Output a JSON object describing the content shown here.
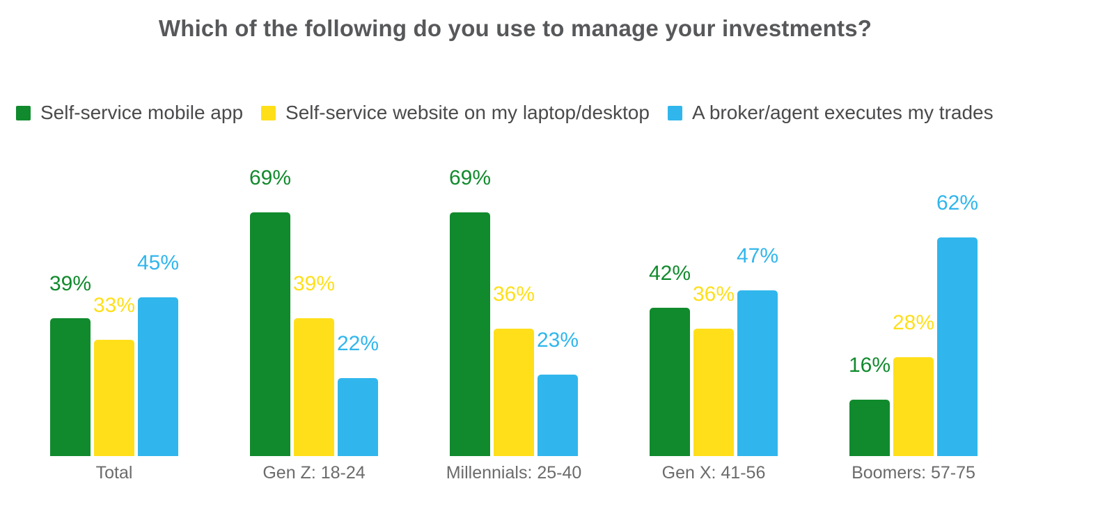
{
  "title": "Which of the following do you use to manage your investments?",
  "colors": {
    "background": "#ffffff",
    "title_text": "#57585a",
    "legend_text": "#4a4a4c",
    "category_text": "#6b6b6b",
    "series_green": "#118a2d",
    "series_yellow": "#ffdf1a",
    "series_blue": "#30b6ec"
  },
  "chart_data": {
    "type": "bar",
    "title": "Which of the following do you use to manage your investments?",
    "xlabel": "",
    "ylabel": "",
    "ylim": [
      0,
      75
    ],
    "grid": false,
    "axes_visible": false,
    "legend_position": "top-left",
    "value_suffix": "%",
    "categories": [
      "Total",
      "Gen Z: 18-24",
      "Millennials: 25-40",
      "Gen X: 41-56",
      "Boomers: 57-75"
    ],
    "series": [
      {
        "name": "Self-service mobile app",
        "color": "#118a2d",
        "values": [
          39,
          69,
          69,
          42,
          16
        ]
      },
      {
        "name": "Self-service website on my laptop/desktop",
        "color": "#ffdf1a",
        "values": [
          33,
          39,
          36,
          36,
          28
        ]
      },
      {
        "name": "A broker/agent executes my trades",
        "color": "#30b6ec",
        "values": [
          45,
          22,
          23,
          47,
          62
        ]
      }
    ]
  }
}
